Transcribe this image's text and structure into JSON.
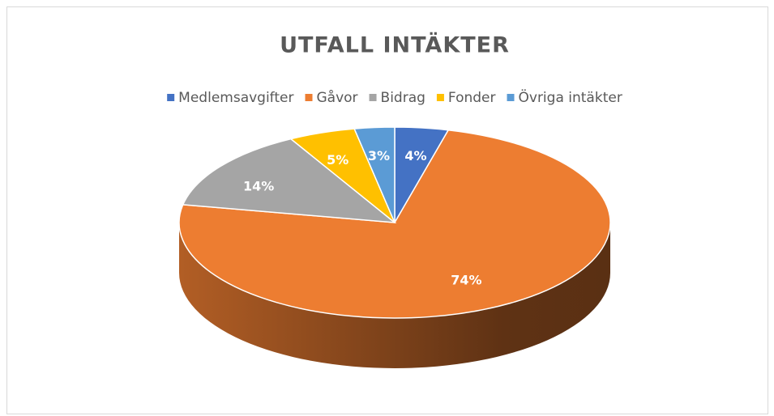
{
  "chart_data": {
    "type": "pie3d",
    "title": "UTFALL INTÄKTER",
    "categories": [
      "Medlemsavgifter",
      "Gåvor",
      "Bidrag",
      "Fonder",
      "Övriga intäkter"
    ],
    "values": [
      4,
      74,
      14,
      5,
      3
    ],
    "value_labels": [
      "4%",
      "74%",
      "14%",
      "5%",
      "3%"
    ],
    "colors": [
      "#4472c4",
      "#ed7d31",
      "#a5a5a5",
      "#ffc000",
      "#5b9bd5"
    ],
    "legend": "top"
  }
}
